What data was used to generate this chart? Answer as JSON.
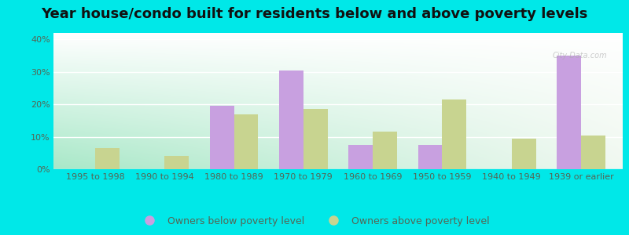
{
  "title": "Year house/condo built for residents below and above poverty levels",
  "categories": [
    "1995 to 1998",
    "1990 to 1994",
    "1980 to 1989",
    "1970 to 1979",
    "1960 to 1969",
    "1950 to 1959",
    "1940 to 1949",
    "1939 or earlier"
  ],
  "below_poverty": [
    0,
    0,
    19.5,
    30.5,
    7.5,
    7.5,
    0,
    35.0
  ],
  "above_poverty": [
    6.5,
    4.0,
    17.0,
    18.5,
    11.5,
    21.5,
    9.5,
    10.5
  ],
  "below_color": "#c8a0e0",
  "above_color": "#c8d490",
  "outer_bg": "#00e8e8",
  "plot_bg_left": "#a8e8c8",
  "plot_bg_right": "#f0f8f0",
  "ylim": [
    0,
    42
  ],
  "yticks": [
    0,
    10,
    20,
    30,
    40
  ],
  "ytick_labels": [
    "0%",
    "10%",
    "20%",
    "30%",
    "40%"
  ],
  "legend_below_label": "Owners below poverty level",
  "legend_above_label": "Owners above poverty level",
  "title_fontsize": 13,
  "tick_fontsize": 8,
  "legend_fontsize": 9,
  "tick_color": "#556655",
  "watermark_text": "City-Data.com"
}
